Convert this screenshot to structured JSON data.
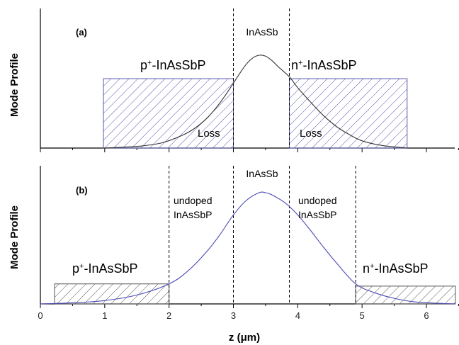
{
  "chart_data": [
    {
      "type": "line",
      "panel_label": "(a)",
      "ylabel": "Mode Profile",
      "xlim": [
        0,
        6.5
      ],
      "ylim": [
        0,
        1.1
      ],
      "colors": {
        "curve": "#333333",
        "hatch": "#5555aa"
      },
      "boundaries": [
        3.0,
        3.87
      ],
      "regions": [
        {
          "label": "p",
          "sup": "+",
          "rest": "-InAsSbP",
          "x_start": 0.98,
          "x_end": 3.0,
          "hatched": true,
          "fill_level": 0.77
        },
        {
          "label": "InAsSb",
          "sup": "",
          "rest": "",
          "x_start": 3.0,
          "x_end": 3.87,
          "hatched": false
        },
        {
          "label": "n",
          "sup": "+",
          "rest": "-InAsSbP",
          "x_start": 3.87,
          "x_end": 5.7,
          "hatched": true,
          "fill_level": 0.77
        }
      ],
      "annotations": [
        "Loss",
        "Loss"
      ],
      "series": [
        {
          "x": [
            0.98,
            1.3,
            1.6,
            1.9,
            2.2,
            2.4,
            2.6,
            2.8,
            3.0,
            3.1,
            3.2,
            3.3,
            3.4,
            3.5,
            3.6,
            3.7,
            3.87,
            4.0,
            4.2,
            4.4,
            4.6,
            4.8,
            5.0,
            5.3,
            5.7
          ],
          "y": [
            0.0,
            0.01,
            0.025,
            0.06,
            0.14,
            0.22,
            0.34,
            0.51,
            0.72,
            0.83,
            0.93,
            1.0,
            1.03,
            1.02,
            0.97,
            0.9,
            0.79,
            0.67,
            0.51,
            0.36,
            0.24,
            0.15,
            0.08,
            0.03,
            0.0
          ]
        }
      ]
    },
    {
      "type": "line",
      "panel_label": "(b)",
      "ylabel": "Mode Profile",
      "xlabel": "z (μm)",
      "xlim": [
        0,
        6.5
      ],
      "ylim": [
        0,
        1.15
      ],
      "x_ticks": [
        0,
        1,
        2,
        3,
        4,
        5,
        6
      ],
      "colors": {
        "curve": "#4a4ab4",
        "hatch": "#555555"
      },
      "boundaries": [
        2.0,
        3.0,
        3.87,
        4.9
      ],
      "regions": [
        {
          "label": "p",
          "sup": "+",
          "rest": "-InAsSbP",
          "x_start": 0.22,
          "x_end": 2.0,
          "hatched": true,
          "fill_level": 0.18
        },
        {
          "label": "undoped",
          "label2": "InAsSbP",
          "x_start": 2.0,
          "x_end": 3.0,
          "hatched": false
        },
        {
          "label": "InAsSb",
          "x_start": 3.0,
          "x_end": 3.87,
          "hatched": false
        },
        {
          "label": "undoped",
          "label2": "InAsSbP",
          "x_start": 3.87,
          "x_end": 4.9,
          "hatched": false
        },
        {
          "label": "n",
          "sup": "+",
          "rest": "-InAsSbP",
          "x_start": 4.9,
          "x_end": 6.45,
          "hatched": true,
          "fill_level": 0.16
        }
      ],
      "series": [
        {
          "x": [
            0.0,
            0.5,
            1.0,
            1.5,
            2.0,
            2.3,
            2.6,
            2.8,
            3.0,
            3.2,
            3.4,
            3.5,
            3.6,
            3.8,
            4.0,
            4.2,
            4.4,
            4.6,
            4.9,
            5.2,
            5.5,
            5.8,
            6.2,
            6.45
          ],
          "y": [
            0.0,
            0.01,
            0.03,
            0.08,
            0.18,
            0.3,
            0.48,
            0.63,
            0.8,
            0.93,
            1.0,
            1.0,
            0.98,
            0.91,
            0.8,
            0.66,
            0.51,
            0.37,
            0.18,
            0.1,
            0.05,
            0.02,
            0.005,
            0.0
          ]
        }
      ]
    }
  ]
}
